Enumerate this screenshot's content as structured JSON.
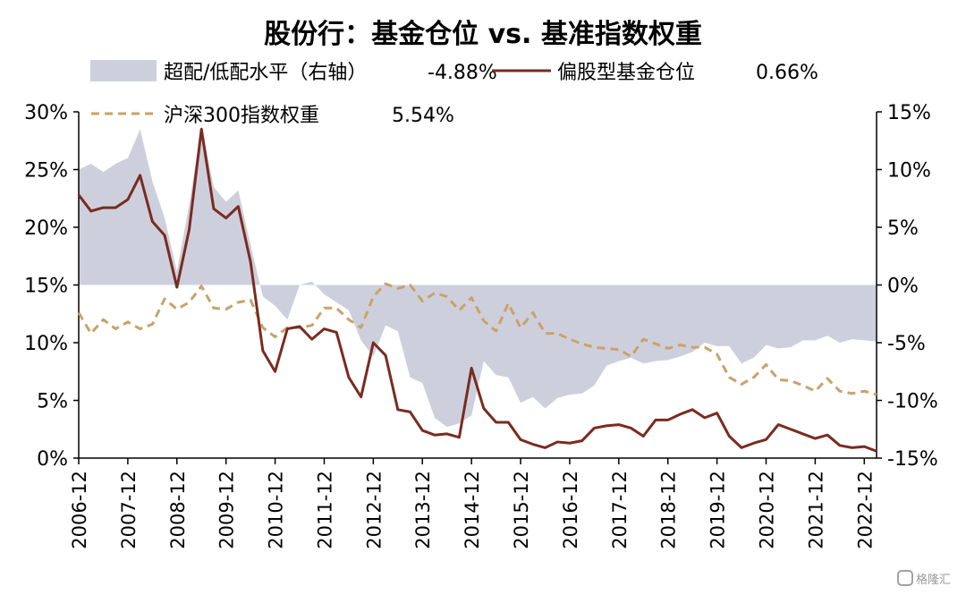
{
  "chart_data": {
    "type": "line",
    "title": "股份行：基金仓位 vs. 基准指数权重",
    "x": [
      "2006-12",
      "2007-03",
      "2007-06",
      "2007-09",
      "2007-12",
      "2008-03",
      "2008-06",
      "2008-09",
      "2008-12",
      "2009-03",
      "2009-06",
      "2009-09",
      "2009-12",
      "2010-03",
      "2010-06",
      "2010-09",
      "2010-12",
      "2011-03",
      "2011-06",
      "2011-09",
      "2011-12",
      "2012-03",
      "2012-06",
      "2012-09",
      "2012-12",
      "2013-03",
      "2013-06",
      "2013-09",
      "2013-12",
      "2014-03",
      "2014-06",
      "2014-09",
      "2014-12",
      "2015-03",
      "2015-06",
      "2015-09",
      "2015-12",
      "2016-03",
      "2016-06",
      "2016-09",
      "2016-12",
      "2017-03",
      "2017-06",
      "2017-09",
      "2017-12",
      "2018-03",
      "2018-06",
      "2018-09",
      "2018-12",
      "2019-03",
      "2019-06",
      "2019-09",
      "2019-12",
      "2020-03",
      "2020-06",
      "2020-09",
      "2020-12",
      "2021-03",
      "2021-06",
      "2021-09",
      "2021-12",
      "2022-03",
      "2022-06",
      "2022-09",
      "2022-12",
      "2023-03"
    ],
    "x_tick_labels": [
      "2006-12",
      "2007-12",
      "2008-12",
      "2009-12",
      "2010-12",
      "2011-12",
      "2012-12",
      "2013-12",
      "2014-12",
      "2015-12",
      "2016-12",
      "2017-12",
      "2018-12",
      "2019-12",
      "2020-12",
      "2021-12",
      "2022-12"
    ],
    "y_left": {
      "min": 0,
      "max": 30,
      "step": 5,
      "ticks": [
        "0%",
        "5%",
        "10%",
        "15%",
        "20%",
        "25%",
        "30%"
      ]
    },
    "y_right": {
      "min": -15,
      "max": 15,
      "step": 5,
      "ticks": [
        "-15%",
        "-10%",
        "-5%",
        "0%",
        "5%",
        "10%",
        "15%"
      ]
    },
    "series": [
      {
        "name": "超配/低配水平（右轴）",
        "value_label": "-4.88%",
        "axis": "right",
        "kind": "area",
        "color": "#cdd0dc",
        "values": [
          10.0,
          10.5,
          9.8,
          10.5,
          11.0,
          13.5,
          9.0,
          5.8,
          1.2,
          7.0,
          13.8,
          8.5,
          7.2,
          8.2,
          3.5,
          -1.0,
          -1.8,
          -3.0,
          0.0,
          0.3,
          -0.8,
          -1.5,
          -2.2,
          -4.8,
          -6.2,
          -3.5,
          -4.0,
          -8.0,
          -8.5,
          -11.5,
          -12.3,
          -12.0,
          -11.3,
          -6.6,
          -7.8,
          -8.0,
          -10.2,
          -9.7,
          -10.7,
          -9.8,
          -9.5,
          -9.4,
          -8.7,
          -7.0,
          -6.6,
          -6.3,
          -6.8,
          -6.6,
          -6.5,
          -6.2,
          -5.8,
          -5.0,
          -5.3,
          -5.3,
          -6.8,
          -6.3,
          -5.2,
          -5.5,
          -5.4,
          -4.8,
          -4.8,
          -4.4,
          -5.0,
          -4.7,
          -4.8,
          -4.9
        ]
      },
      {
        "name": "偏股型基金仓位",
        "value_label": "0.66%",
        "axis": "left",
        "kind": "line",
        "color": "#7a2b20",
        "values": [
          22.8,
          21.4,
          21.7,
          21.7,
          22.4,
          24.5,
          20.5,
          19.3,
          14.8,
          19.8,
          28.5,
          21.6,
          20.8,
          21.8,
          17.0,
          9.3,
          7.5,
          11.2,
          11.4,
          10.3,
          11.2,
          10.9,
          7.0,
          5.3,
          10.0,
          8.9,
          4.2,
          4.0,
          2.4,
          2.0,
          2.1,
          1.8,
          7.8,
          4.3,
          3.1,
          3.1,
          1.6,
          1.2,
          0.9,
          1.4,
          1.3,
          1.5,
          2.6,
          2.8,
          2.9,
          2.6,
          1.9,
          3.3,
          3.3,
          3.8,
          4.2,
          3.5,
          3.9,
          1.9,
          0.9,
          1.3,
          1.6,
          2.9,
          2.5,
          2.1,
          1.7,
          2.0,
          1.1,
          0.9,
          1.0,
          0.6
        ]
      },
      {
        "name": "沪深300指数权重",
        "value_label": "5.54%",
        "axis": "left",
        "kind": "dashed-line",
        "color": "#c9a26a",
        "values": [
          12.6,
          10.8,
          12.0,
          11.2,
          11.8,
          11.2,
          11.6,
          13.8,
          12.9,
          13.5,
          14.9,
          13.0,
          12.9,
          13.5,
          13.7,
          11.3,
          10.5,
          11.3,
          11.3,
          11.5,
          13.0,
          13.0,
          12.0,
          11.3,
          14.0,
          15.1,
          14.7,
          15.0,
          13.6,
          14.3,
          14.0,
          12.8,
          13.9,
          11.9,
          11.0,
          13.4,
          11.3,
          12.6,
          10.8,
          10.8,
          10.3,
          9.9,
          9.6,
          9.5,
          9.4,
          8.8,
          10.3,
          9.9,
          9.5,
          9.8,
          9.6,
          9.6,
          9.0,
          7.0,
          6.4,
          7.0,
          8.1,
          6.8,
          6.7,
          6.3,
          5.8,
          6.9,
          5.8,
          5.6,
          5.8,
          5.5
        ]
      }
    ],
    "legend": {
      "position": "top"
    },
    "grid": false
  },
  "watermark": "格隆汇"
}
